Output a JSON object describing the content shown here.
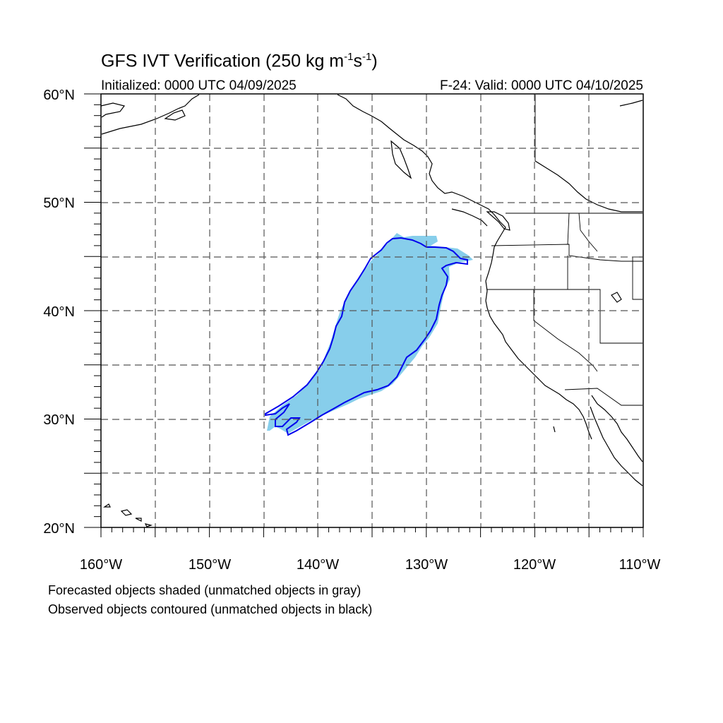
{
  "title": {
    "main": "GFS IVT Verification (250 kg m",
    "sup1": "-1",
    "mid": "s",
    "sup2": "-1",
    "end": ")"
  },
  "subtitle": {
    "left": "Initialized: 0000 UTC 04/09/2025",
    "right": "F-24: Valid: 0000 UTC 04/10/2025"
  },
  "axes": {
    "lat_labels": [
      "60°N",
      "50°N",
      "40°N",
      "30°N",
      "20°N"
    ],
    "lon_labels": [
      "160°W",
      "150°W",
      "140°W",
      "130°W",
      "120°W",
      "110°W"
    ],
    "lat_range": [
      20,
      60
    ],
    "lon_range": [
      -160,
      -110
    ],
    "grid_spacing_deg": 5
  },
  "notes": [
    "Forecasted objects shaded (unmatched objects in gray)",
    "Observed objects contoured (unmatched objects in black)"
  ],
  "colors": {
    "forecast_fill": "#87ceeb",
    "observed_contour": "#0000ee",
    "coastline": "#000000",
    "grid": "#555555"
  }
}
